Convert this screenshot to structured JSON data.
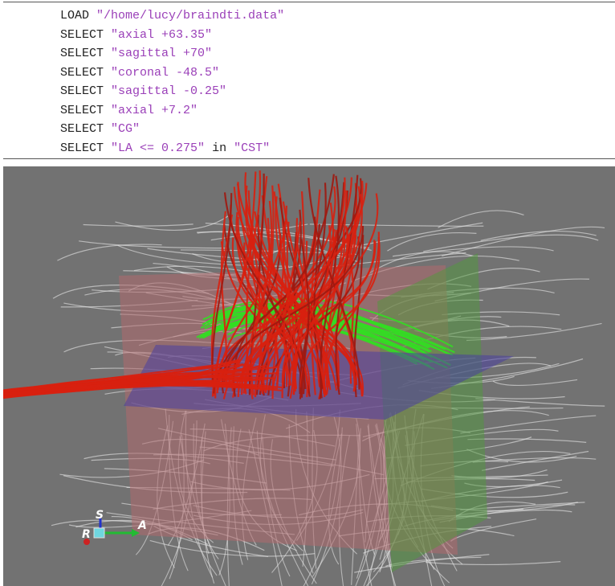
{
  "code": {
    "lines": [
      {
        "command": "LOAD",
        "args": [
          "\"/home/lucy/braindti.data\""
        ]
      },
      {
        "command": "SELECT",
        "args": [
          "\"axial +63.35\""
        ]
      },
      {
        "command": "SELECT",
        "args": [
          "\"sagittal +70\""
        ]
      },
      {
        "command": "SELECT",
        "args": [
          "\"coronal -48.5\""
        ]
      },
      {
        "command": "SELECT",
        "args": [
          "\"sagittal -0.25\""
        ]
      },
      {
        "command": "SELECT",
        "args": [
          "\"axial +7.2\""
        ]
      },
      {
        "command": "SELECT",
        "args": [
          "\"CG\""
        ]
      },
      {
        "command": "SELECT",
        "args": [
          "\"LA <= 0.275\"",
          "\"CST\""
        ],
        "joiner": "in"
      }
    ]
  },
  "orientation": {
    "superior": "S",
    "right": "R",
    "anterior": "A"
  }
}
